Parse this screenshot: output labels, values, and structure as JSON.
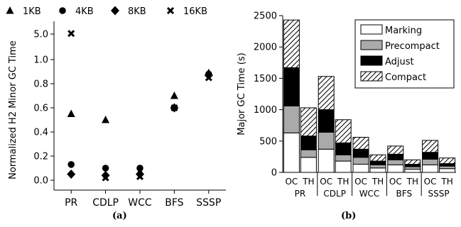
{
  "chart_data": [
    {
      "type": "scatter",
      "panel_label": "(a)",
      "ylabel": "Normalized H2 Minor GC Time",
      "categories": [
        "PR",
        "CDLP",
        "WCC",
        "BFS",
        "SSSP"
      ],
      "y_ticks": [
        "0.0",
        "0.2",
        "0.4",
        "0.6",
        "0.8",
        "1.0",
        "5.0"
      ],
      "y_scale": "broken: linear 0.0–1.0, then jump to 5.0",
      "legend_position": "top",
      "series": [
        {
          "name": "1KB",
          "marker": "triangle",
          "values": [
            0.55,
            0.5,
            0.07,
            0.7,
            0.89
          ]
        },
        {
          "name": "4KB",
          "marker": "circle",
          "values": [
            0.13,
            0.1,
            0.1,
            0.6,
            0.88
          ]
        },
        {
          "name": "8KB",
          "marker": "diamond",
          "values": [
            0.05,
            0.04,
            0.05,
            0.6,
            0.87
          ]
        },
        {
          "name": "16KB",
          "marker": "x",
          "values": [
            5.1,
            0.02,
            0.03,
            0.6,
            0.85
          ]
        }
      ]
    },
    {
      "type": "bar",
      "stacked": true,
      "panel_label": "(b)",
      "ylabel": "Major GC Time (s)",
      "ylim": [
        0,
        2500
      ],
      "y_ticks": [
        "0",
        "500",
        "1000",
        "1500",
        "2000",
        "2500"
      ],
      "groups": [
        "PR",
        "CDLP",
        "WCC",
        "BFS",
        "SSSP"
      ],
      "bar_labels": [
        "OC",
        "TH"
      ],
      "legend_position": "top-right",
      "series": [
        {
          "name": "Marking",
          "fill": "#ffffff",
          "values": [
            [
              630,
              240
            ],
            [
              370,
              180
            ],
            [
              130,
              70
            ],
            [
              120,
              50
            ],
            [
              120,
              60
            ]
          ]
        },
        {
          "name": "Precompact",
          "fill": "#aaaaaa",
          "values": [
            [
              430,
              120
            ],
            [
              270,
              100
            ],
            [
              110,
              50
            ],
            [
              80,
              40
            ],
            [
              90,
              40
            ]
          ]
        },
        {
          "name": "Adjust",
          "fill": "#000000",
          "values": [
            [
              610,
              220
            ],
            [
              360,
              190
            ],
            [
              130,
              60
            ],
            [
              90,
              40
            ],
            [
              110,
              40
            ]
          ]
        },
        {
          "name": "Compact",
          "fill": "hatch",
          "values": [
            [
              760,
              450
            ],
            [
              530,
              370
            ],
            [
              190,
              100
            ],
            [
              130,
              70
            ],
            [
              190,
              90
            ]
          ]
        }
      ]
    }
  ]
}
